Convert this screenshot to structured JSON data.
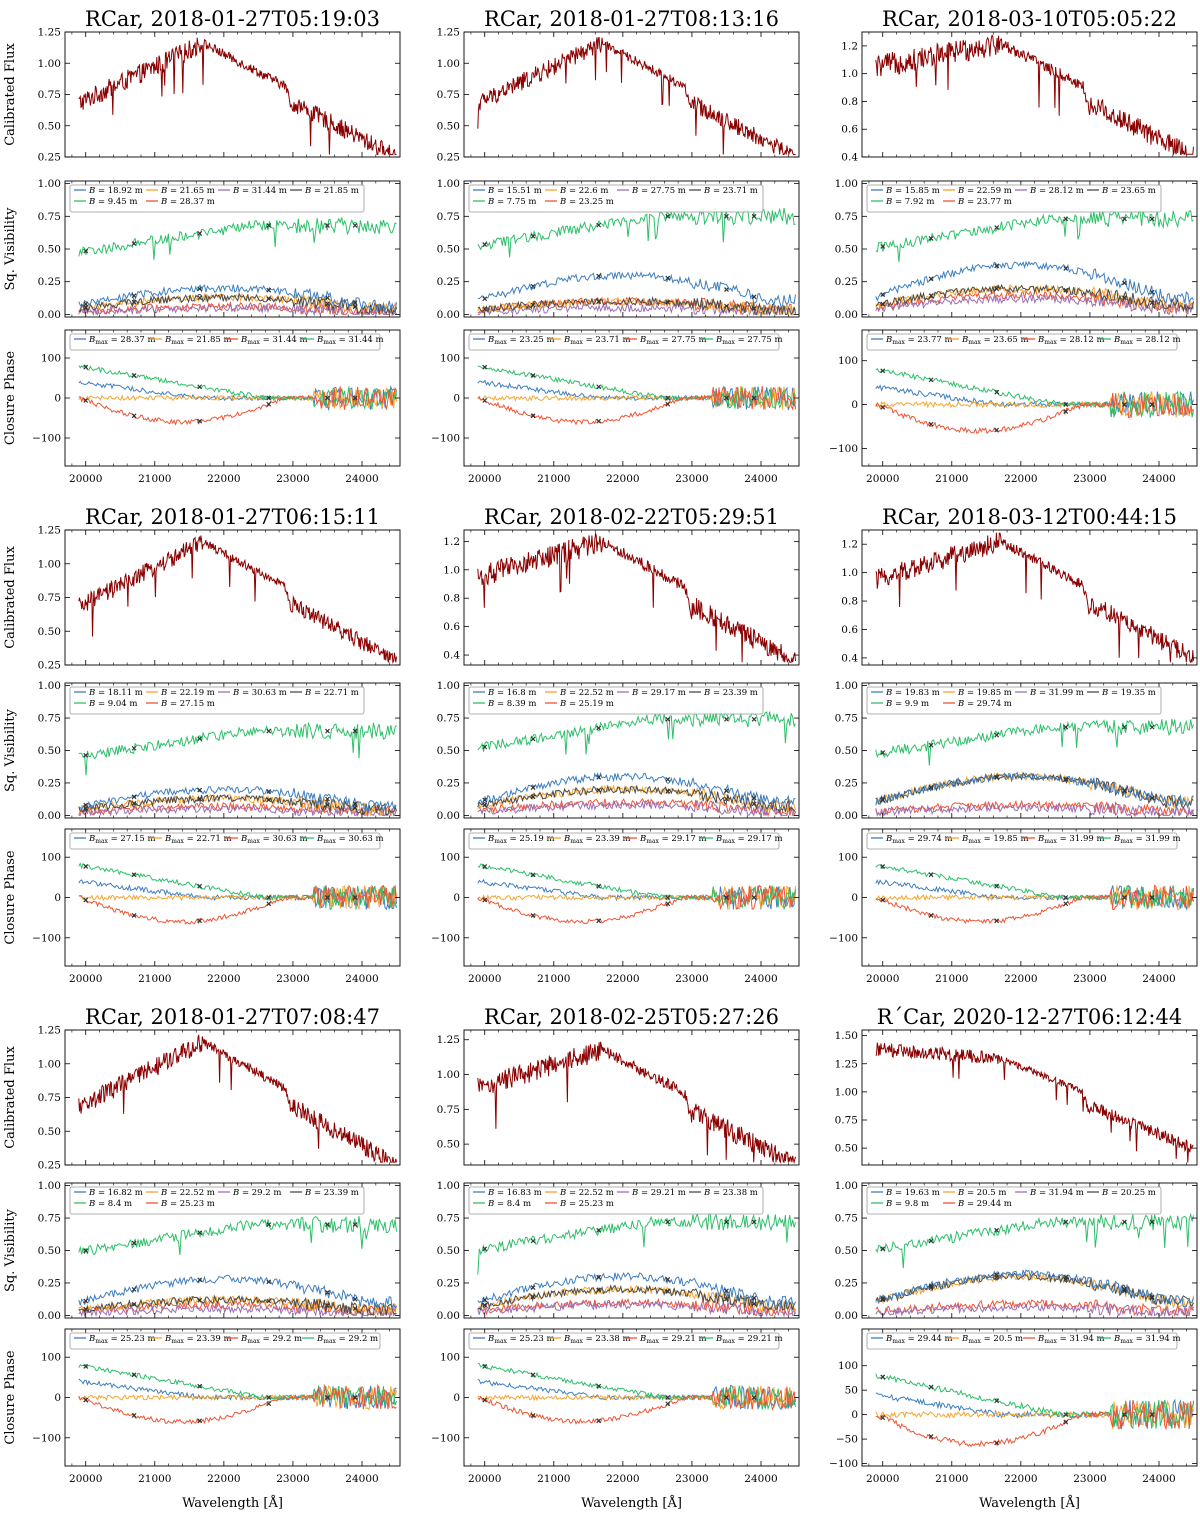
{
  "figure": {
    "ylabels": {
      "flux": "Calibrated Flux",
      "vis": "Sq. Visibility",
      "cp": "Closure Phase"
    },
    "xlabel": "Wavelength [Å]",
    "colors": {
      "flux": "#8b0000",
      "series": [
        "#3f7fbf",
        "#f6a531",
        "#9b6fb5",
        "#4a4a4a",
        "#2fbf6a",
        "#ef5535"
      ],
      "marker": "#333333"
    }
  },
  "chart_data": [
    {
      "type": "line",
      "title": "RCar, 2018-01-27T05:19:03",
      "flux": {
        "ylim": [
          0.25,
          1.25
        ],
        "yticks": [
          "0.25",
          "0.50",
          "0.75",
          "1.00",
          "1.25"
        ],
        "start": 0.68,
        "peak": 1.16,
        "end": 0.35,
        "noise": 0.13
      },
      "vis_legend": [
        "B = 18.92 m",
        "B = 21.65 m",
        "B = 31.44 m",
        "B = 21.85 m",
        "B = 9.45 m",
        "B = 28.37 m"
      ],
      "vis_levels": [
        0.2,
        0.13,
        0.05,
        0.13,
        0.68,
        0.06
      ],
      "cp_legend": [
        "Bmax = 28.37 m",
        "Bmax = 21.85 m",
        "Bmax = 31.44 m",
        "Bmax = 31.44 m"
      ],
      "cp_ylim": [
        -170,
        170
      ],
      "cp_yticks": [
        "100",
        "0",
        "−100"
      ],
      "cp_yvals": [
        100,
        0,
        -100
      ]
    },
    {
      "type": "line",
      "title": "RCar, 2018-01-27T08:13:16",
      "flux": {
        "ylim": [
          0.25,
          1.25
        ],
        "yticks": [
          "0.25",
          "0.50",
          "0.75",
          "1.00",
          "1.25"
        ],
        "start": 0.68,
        "peak": 1.16,
        "end": 0.35,
        "noise": 0.12
      },
      "vis_legend": [
        "B = 15.51 m",
        "B = 22.6 m",
        "B = 27.75 m",
        "B = 23.71 m",
        "B = 7.75 m",
        "B = 23.25 m"
      ],
      "vis_levels": [
        0.3,
        0.1,
        0.05,
        0.1,
        0.75,
        0.1
      ],
      "cp_legend": [
        "Bmax = 23.25 m",
        "Bmax = 23.71 m",
        "Bmax = 27.75 m",
        "Bmax = 27.75 m"
      ],
      "cp_ylim": [
        -170,
        170
      ],
      "cp_yticks": [
        "100",
        "0",
        "−100"
      ],
      "cp_yvals": [
        100,
        0,
        -100
      ]
    },
    {
      "type": "line",
      "title": "RCar, 2018-03-10T05:05:22",
      "flux": {
        "ylim": [
          0.4,
          1.3
        ],
        "yticks": [
          "0.4",
          "0.6",
          "0.8",
          "1.0",
          "1.2"
        ],
        "start": 1.05,
        "peak": 1.22,
        "end": 0.5,
        "noise": 0.14
      },
      "vis_legend": [
        "B = 15.85 m",
        "B = 22.59 m",
        "B = 28.12 m",
        "B = 23.65 m",
        "B = 7.92 m",
        "B = 23.77 m"
      ],
      "vis_levels": [
        0.38,
        0.2,
        0.12,
        0.2,
        0.73,
        0.15
      ],
      "cp_legend": [
        "Bmax = 23.77 m",
        "Bmax = 23.65 m",
        "Bmax = 28.12 m",
        "Bmax = 28.12 m"
      ],
      "cp_ylim": [
        -140,
        170
      ],
      "cp_yticks": [
        "100",
        "0",
        "−100"
      ],
      "cp_yvals": [
        100,
        0,
        -100
      ]
    },
    {
      "type": "line",
      "title": "RCar, 2018-01-27T06:15:11",
      "flux": {
        "ylim": [
          0.25,
          1.25
        ],
        "yticks": [
          "0.25",
          "0.50",
          "0.75",
          "1.00",
          "1.25"
        ],
        "start": 0.68,
        "peak": 1.16,
        "end": 0.38,
        "noise": 0.11
      },
      "vis_legend": [
        "B = 18.11 m",
        "B = 22.19 m",
        "B = 30.63 m",
        "B = 22.71 m",
        "B = 9.04 m",
        "B = 27.15 m"
      ],
      "vis_levels": [
        0.2,
        0.13,
        0.05,
        0.13,
        0.65,
        0.07
      ],
      "cp_legend": [
        "Bmax = 27.15 m",
        "Bmax = 22.71 m",
        "Bmax = 30.63 m",
        "Bmax = 30.63 m"
      ],
      "cp_ylim": [
        -170,
        170
      ],
      "cp_yticks": [
        "100",
        "0",
        "−100"
      ],
      "cp_yvals": [
        100,
        0,
        -100
      ]
    },
    {
      "type": "line",
      "title": "RCar, 2018-02-22T05:29:51",
      "flux": {
        "ylim": [
          0.33,
          1.28
        ],
        "yticks": [
          "0.4",
          "0.6",
          "0.8",
          "1.0",
          "1.2"
        ],
        "start": 0.95,
        "peak": 1.2,
        "end": 0.45,
        "noise": 0.13
      },
      "vis_legend": [
        "B = 16.8 m",
        "B = 22.52 m",
        "B = 29.17 m",
        "B = 23.39 m",
        "B = 8.39 m",
        "B = 25.19 m"
      ],
      "vis_levels": [
        0.3,
        0.2,
        0.08,
        0.2,
        0.74,
        0.1
      ],
      "cp_legend": [
        "Bmax = 25.19 m",
        "Bmax = 23.39 m",
        "Bmax = 29.17 m",
        "Bmax = 29.17 m"
      ],
      "cp_ylim": [
        -170,
        170
      ],
      "cp_yticks": [
        "100",
        "0",
        "−100"
      ],
      "cp_yvals": [
        100,
        0,
        -100
      ]
    },
    {
      "type": "line",
      "title": "RCar, 2018-03-12T00:44:15",
      "flux": {
        "ylim": [
          0.35,
          1.3
        ],
        "yticks": [
          "0.4",
          "0.6",
          "0.8",
          "1.0",
          "1.2"
        ],
        "start": 0.95,
        "peak": 1.22,
        "end": 0.5,
        "noise": 0.12
      },
      "vis_legend": [
        "B = 19.83 m",
        "B = 19.85 m",
        "B = 31.99 m",
        "B = 19.35 m",
        "B = 9.9 m",
        "B = 29.74 m"
      ],
      "vis_levels": [
        0.3,
        0.3,
        0.06,
        0.3,
        0.68,
        0.08
      ],
      "cp_legend": [
        "Bmax = 29.74 m",
        "Bmax = 19.85 m",
        "Bmax = 31.99 m",
        "Bmax = 31.99 m"
      ],
      "cp_ylim": [
        -170,
        170
      ],
      "cp_yticks": [
        "100",
        "0",
        "−100"
      ],
      "cp_yvals": [
        100,
        0,
        -100
      ]
    },
    {
      "type": "line",
      "title": "RCar, 2018-01-27T07:08:47",
      "flux": {
        "ylim": [
          0.25,
          1.25
        ],
        "yticks": [
          "0.25",
          "0.50",
          "0.75",
          "1.00",
          "1.25"
        ],
        "start": 0.68,
        "peak": 1.16,
        "end": 0.35,
        "noise": 0.12
      },
      "vis_legend": [
        "B = 16.82 m",
        "B = 22.52 m",
        "B = 29.2 m",
        "B = 23.39 m",
        "B = 8.4 m",
        "B = 25.23 m"
      ],
      "vis_levels": [
        0.28,
        0.12,
        0.05,
        0.12,
        0.7,
        0.08
      ],
      "cp_legend": [
        "Bmax = 25.23 m",
        "Bmax = 23.39 m",
        "Bmax = 29.2 m",
        "Bmax = 29.2 m"
      ],
      "cp_ylim": [
        -170,
        170
      ],
      "cp_yticks": [
        "100",
        "0",
        "−100"
      ],
      "cp_yvals": [
        100,
        0,
        -100
      ]
    },
    {
      "type": "line",
      "title": "RCar, 2018-02-25T05:27:26",
      "flux": {
        "ylim": [
          0.35,
          1.32
        ],
        "yticks": [
          "0.50",
          "0.75",
          "1.00",
          "1.25"
        ],
        "start": 0.9,
        "peak": 1.18,
        "end": 0.45,
        "noise": 0.13
      },
      "vis_legend": [
        "B = 16.83 m",
        "B = 22.52 m",
        "B = 29.21 m",
        "B = 23.38 m",
        "B = 8.4 m",
        "B = 25.23 m"
      ],
      "vis_levels": [
        0.3,
        0.2,
        0.08,
        0.2,
        0.72,
        0.1
      ],
      "cp_legend": [
        "Bmax = 25.23 m",
        "Bmax = 23.38 m",
        "Bmax = 29.21 m",
        "Bmax = 29.21 m"
      ],
      "cp_ylim": [
        -170,
        170
      ],
      "cp_yticks": [
        "100",
        "0",
        "−100"
      ],
      "cp_yvals": [
        100,
        0,
        -100
      ]
    },
    {
      "type": "line",
      "title": "R´Car, 2020-12-27T06:12:44",
      "flux": {
        "ylim": [
          0.35,
          1.55
        ],
        "yticks": [
          "0.50",
          "0.75",
          "1.00",
          "1.25",
          "1.50"
        ],
        "start": 1.38,
        "peak": 1.3,
        "end": 0.6,
        "noise": 0.1
      },
      "vis_legend": [
        "B = 19.63 m",
        "B = 20.5 m",
        "B = 31.94 m",
        "B = 20.25 m",
        "B = 9.8 m",
        "B = 29.44 m"
      ],
      "vis_levels": [
        0.32,
        0.3,
        0.06,
        0.3,
        0.72,
        0.09
      ],
      "cp_legend": [
        "Bmax = 29.44 m",
        "Bmax = 20.5 m",
        "Bmax = 31.94 m",
        "Bmax = 31.94 m"
      ],
      "cp_ylim": [
        -105,
        175
      ],
      "cp_yticks": [
        "100",
        "50",
        "0",
        "−50",
        "−100"
      ],
      "cp_yvals": [
        100,
        50,
        0,
        -50,
        -100
      ]
    }
  ]
}
